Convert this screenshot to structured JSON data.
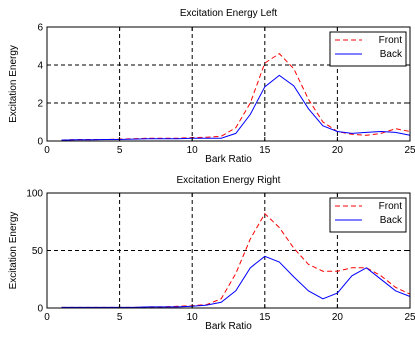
{
  "chart_data": [
    {
      "type": "line",
      "title": "Excitation Energy Left",
      "xlabel": "Bark Ratio",
      "ylabel": "Excitation Energy",
      "xlim": [
        0,
        25
      ],
      "ylim": [
        0,
        6
      ],
      "xticks": [
        "0",
        "5",
        "10",
        "15",
        "20",
        "25"
      ],
      "yticks": [
        "0",
        "2",
        "4",
        "6"
      ],
      "grid": true,
      "legend_position": "top-right",
      "x": [
        1,
        2,
        3,
        4,
        5,
        6,
        7,
        8,
        9,
        10,
        11,
        12,
        13,
        14,
        15,
        16,
        17,
        18,
        19,
        20,
        21,
        22,
        23,
        24,
        25
      ],
      "series": [
        {
          "name": "Front",
          "color": "#ff0000",
          "dash": true,
          "values": [
            0.05,
            0.08,
            0.08,
            0.08,
            0.1,
            0.12,
            0.15,
            0.15,
            0.15,
            0.18,
            0.2,
            0.25,
            0.7,
            2.0,
            4.1,
            4.6,
            3.8,
            2.2,
            1.0,
            0.5,
            0.35,
            0.3,
            0.4,
            0.65,
            0.5
          ]
        },
        {
          "name": "Back",
          "color": "#0000ff",
          "dash": false,
          "values": [
            0.05,
            0.07,
            0.07,
            0.08,
            0.08,
            0.1,
            0.12,
            0.12,
            0.12,
            0.15,
            0.15,
            0.15,
            0.4,
            1.4,
            2.85,
            3.45,
            2.9,
            1.7,
            0.8,
            0.5,
            0.4,
            0.45,
            0.5,
            0.45,
            0.3
          ]
        }
      ]
    },
    {
      "type": "line",
      "title": "Excitation Energy Right",
      "xlabel": "Bark Ratio",
      "ylabel": "Excitation Energy",
      "xlim": [
        0,
        25
      ],
      "ylim": [
        0,
        100
      ],
      "xticks": [
        "0",
        "5",
        "10",
        "15",
        "20",
        "25"
      ],
      "yticks": [
        "0",
        "50",
        "100"
      ],
      "grid": true,
      "legend_position": "top-right",
      "x": [
        1,
        2,
        3,
        4,
        5,
        6,
        7,
        8,
        9,
        10,
        11,
        12,
        13,
        14,
        15,
        16,
        17,
        18,
        19,
        20,
        21,
        22,
        23,
        24,
        25
      ],
      "series": [
        {
          "name": "Front",
          "color": "#ff0000",
          "dash": true,
          "values": [
            0.5,
            0.5,
            0.5,
            0.5,
            0.5,
            0.5,
            1,
            1,
            1.5,
            2,
            3,
            8,
            30,
            60,
            82,
            70,
            52,
            38,
            32,
            32,
            35,
            35,
            28,
            18,
            12
          ]
        },
        {
          "name": "Back",
          "color": "#0000ff",
          "dash": false,
          "values": [
            0.5,
            0.5,
            0.5,
            0.5,
            0.5,
            0.5,
            1,
            1,
            1,
            1.5,
            2.5,
            5,
            15,
            35,
            45,
            40,
            27,
            15,
            8,
            13,
            28,
            35,
            25,
            15,
            10
          ]
        }
      ]
    }
  ]
}
